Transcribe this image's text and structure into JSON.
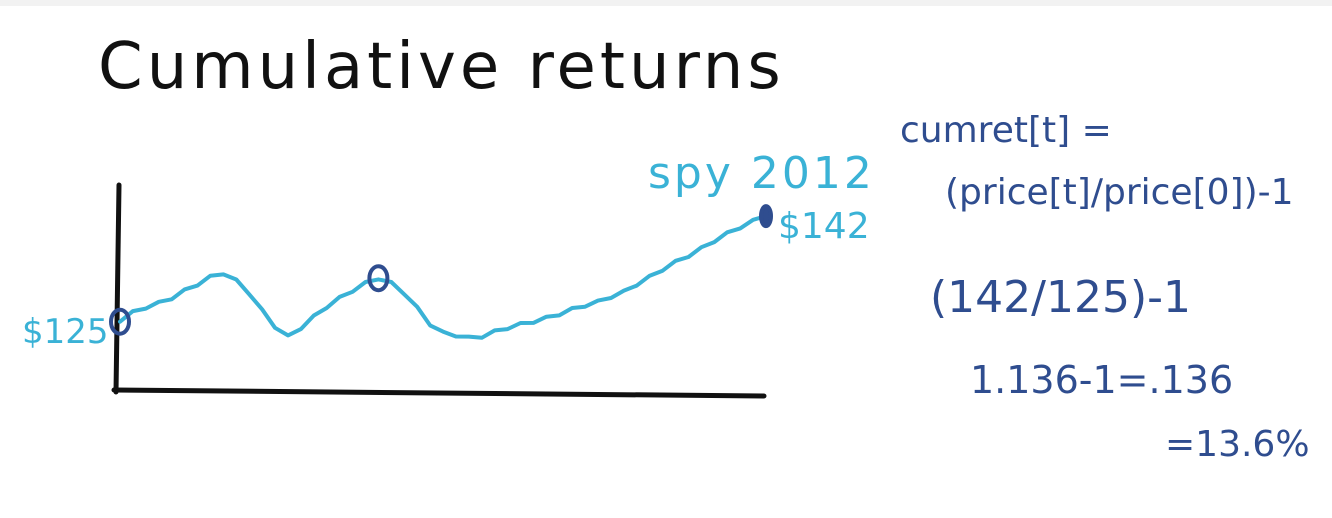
{
  "title": "Cumulative returns",
  "series_label": "spy 2012",
  "start_label": "$125",
  "end_label": "$142",
  "formula": {
    "line1": "cumret[t] =",
    "line2": "(price[t]/price[0])-1",
    "line3": "(142/125)-1",
    "line4": "1.136-1=.136",
    "line5": "=13.6%"
  },
  "colors": {
    "line": "#3ab2d6",
    "marker": "#2f4d8f",
    "axis": "#111111",
    "formula": "#2f4d8f"
  },
  "chart_data": {
    "type": "line",
    "series": [
      {
        "name": "spy 2012",
        "x": [
          0,
          1,
          2,
          3,
          4,
          5,
          6,
          7,
          8,
          9,
          10,
          11,
          12,
          13,
          14,
          15,
          16,
          17,
          18,
          19,
          20,
          21,
          22,
          23,
          24,
          25,
          26,
          27,
          28,
          29,
          30,
          31,
          32,
          33,
          34,
          35,
          36,
          37,
          38,
          39,
          40,
          41,
          42,
          43,
          44,
          45,
          46,
          47,
          48,
          49,
          50
        ],
        "values": [
          125,
          126.5,
          127.3,
          128,
          128.8,
          130,
          131,
          132.2,
          132.8,
          131.6,
          129.6,
          126.8,
          124.2,
          122.6,
          124,
          125.8,
          127.4,
          128.8,
          130,
          131.2,
          132,
          131.2,
          129.6,
          127.2,
          124.6,
          123.2,
          122.8,
          122.4,
          122.6,
          123.4,
          124,
          124.6,
          125,
          125.6,
          126.2,
          127,
          127.6,
          128.2,
          129,
          129.8,
          131,
          132.2,
          133.4,
          134.6,
          135.6,
          136.8,
          138,
          139.2,
          140.2,
          141.2,
          142
        ]
      }
    ],
    "highlight_points": [
      0,
      20,
      50
    ],
    "ylim": [
      114,
      147
    ]
  }
}
